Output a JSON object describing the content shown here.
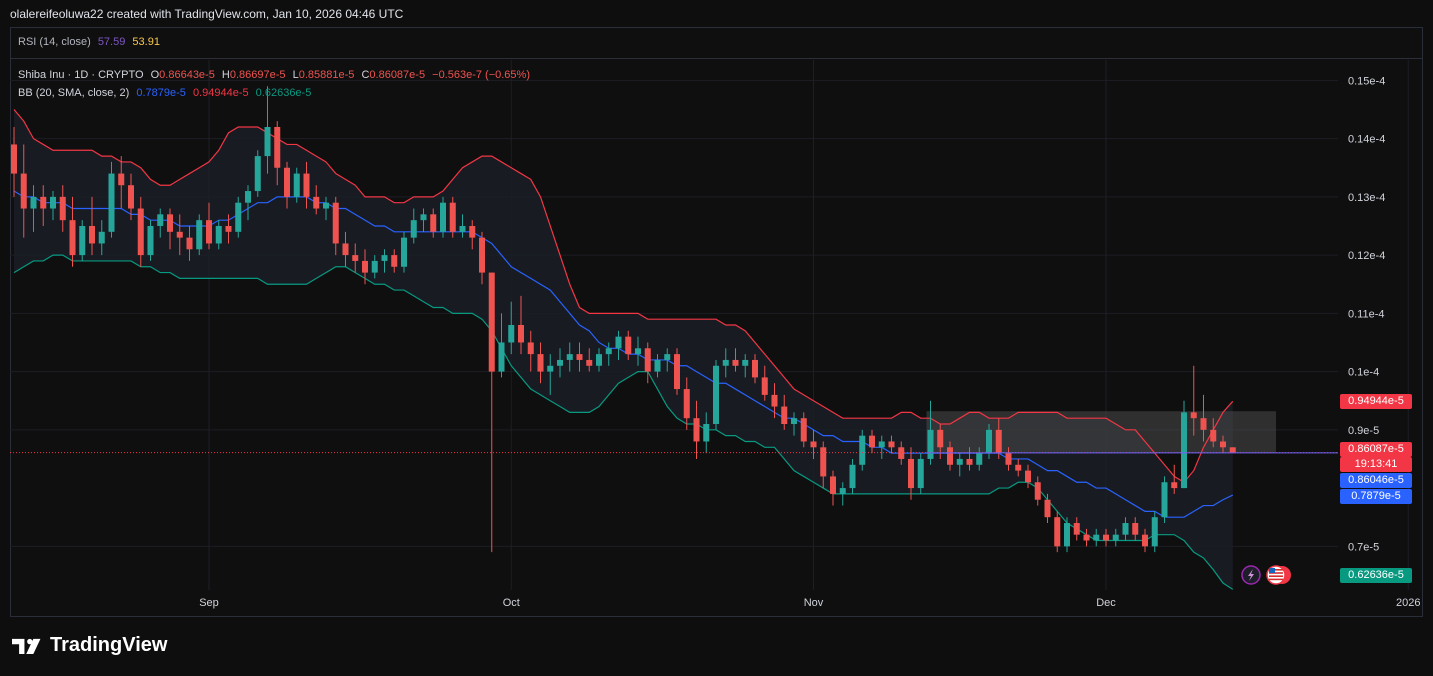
{
  "caption": "olalereifeoluwa22 created with TradingView.com, Jan 10, 2026 04:46 UTC",
  "rsi": {
    "label": "RSI (14, close)",
    "value1": "57.59",
    "value2": "53.91",
    "color1": "#7e57c2",
    "color2": "#f9c74f"
  },
  "legend": {
    "symbol": "Shiba Inu · 1D · CRYPTO",
    "o_label": "O",
    "o_value": "0.86643e-5",
    "h_label": "H",
    "h_value": "0.86697e-5",
    "l_label": "L",
    "l_value": "0.85881e-5",
    "c_label": "C",
    "c_value": "0.86087e-5",
    "change": "−0.563e-7 (−0.65%)",
    "bb_label": "BB (20, SMA, close, 2)",
    "bb_basis": "0.7879e-5",
    "bb_upper": "0.94944e-5",
    "bb_lower": "0.62636e-5"
  },
  "tags": {
    "upper": "0.94944e-5",
    "last": "0.86087e-5",
    "countdown": "19:13:41",
    "line": "0.86046e-5",
    "basis": "0.7879e-5",
    "lower": "0.62636e-5"
  },
  "brand": "TradingView",
  "colors": {
    "up": "#26a69a",
    "down": "#ef5350",
    "basis": "#2962ff",
    "upper": "#f23645",
    "lower": "#089981",
    "band_fill": "#1a1f26",
    "zone": "#4a4a4a"
  },
  "icons": [
    "flash-icon",
    "us-flag-icon"
  ],
  "chart_data": {
    "type": "candlestick",
    "title": "Shiba Inu · 1D · CRYPTO",
    "ylim": [
      0.0625,
      0.1535
    ],
    "y_ticks": [
      "0.7e-5",
      "0.9e-5",
      "0.1e-4",
      "0.11e-4",
      "0.12e-4",
      "0.13e-4",
      "0.14e-4",
      "0.15e-4"
    ],
    "y_tick_values": [
      0.07,
      0.09,
      0.1,
      0.11,
      0.12,
      0.13,
      0.14,
      0.15
    ],
    "x_ticks": [
      "Sep",
      "Oct",
      "Nov",
      "Dec",
      "2026"
    ],
    "x_tick_index": [
      20,
      51,
      82,
      112,
      143
    ],
    "unit": "1e-4",
    "candles": [
      [
        0.139,
        0.142,
        0.13,
        0.134
      ],
      [
        0.134,
        0.139,
        0.123,
        0.128
      ],
      [
        0.128,
        0.132,
        0.124,
        0.13
      ],
      [
        0.13,
        0.132,
        0.125,
        0.128
      ],
      [
        0.128,
        0.131,
        0.126,
        0.13
      ],
      [
        0.13,
        0.132,
        0.124,
        0.126
      ],
      [
        0.126,
        0.13,
        0.118,
        0.12
      ],
      [
        0.12,
        0.126,
        0.119,
        0.125
      ],
      [
        0.125,
        0.13,
        0.12,
        0.122
      ],
      [
        0.122,
        0.126,
        0.12,
        0.124
      ],
      [
        0.124,
        0.136,
        0.123,
        0.134
      ],
      [
        0.134,
        0.137,
        0.128,
        0.132
      ],
      [
        0.132,
        0.134,
        0.126,
        0.128
      ],
      [
        0.128,
        0.13,
        0.118,
        0.12
      ],
      [
        0.12,
        0.126,
        0.119,
        0.125
      ],
      [
        0.125,
        0.128,
        0.123,
        0.127
      ],
      [
        0.127,
        0.128,
        0.121,
        0.124
      ],
      [
        0.124,
        0.127,
        0.12,
        0.123
      ],
      [
        0.123,
        0.125,
        0.119,
        0.121
      ],
      [
        0.121,
        0.127,
        0.12,
        0.126
      ],
      [
        0.126,
        0.129,
        0.121,
        0.122
      ],
      [
        0.122,
        0.126,
        0.121,
        0.125
      ],
      [
        0.125,
        0.127,
        0.122,
        0.124
      ],
      [
        0.124,
        0.13,
        0.123,
        0.129
      ],
      [
        0.129,
        0.132,
        0.126,
        0.131
      ],
      [
        0.131,
        0.138,
        0.13,
        0.137
      ],
      [
        0.137,
        0.149,
        0.134,
        0.142
      ],
      [
        0.142,
        0.143,
        0.132,
        0.135
      ],
      [
        0.135,
        0.136,
        0.128,
        0.13
      ],
      [
        0.13,
        0.135,
        0.129,
        0.134
      ],
      [
        0.134,
        0.136,
        0.128,
        0.13
      ],
      [
        0.13,
        0.132,
        0.127,
        0.128
      ],
      [
        0.128,
        0.13,
        0.126,
        0.129
      ],
      [
        0.129,
        0.13,
        0.12,
        0.122
      ],
      [
        0.122,
        0.124,
        0.118,
        0.12
      ],
      [
        0.12,
        0.122,
        0.117,
        0.119
      ],
      [
        0.119,
        0.121,
        0.115,
        0.117
      ],
      [
        0.117,
        0.12,
        0.116,
        0.119
      ],
      [
        0.119,
        0.121,
        0.117,
        0.12
      ],
      [
        0.12,
        0.121,
        0.117,
        0.118
      ],
      [
        0.118,
        0.124,
        0.117,
        0.123
      ],
      [
        0.123,
        0.128,
        0.122,
        0.126
      ],
      [
        0.126,
        0.128,
        0.124,
        0.127
      ],
      [
        0.127,
        0.128,
        0.123,
        0.124
      ],
      [
        0.124,
        0.13,
        0.123,
        0.129
      ],
      [
        0.129,
        0.13,
        0.123,
        0.124
      ],
      [
        0.124,
        0.127,
        0.123,
        0.125
      ],
      [
        0.125,
        0.126,
        0.121,
        0.123
      ],
      [
        0.123,
        0.124,
        0.115,
        0.117
      ],
      [
        0.117,
        0.117,
        0.069,
        0.1
      ],
      [
        0.1,
        0.11,
        0.099,
        0.105
      ],
      [
        0.105,
        0.112,
        0.103,
        0.108
      ],
      [
        0.108,
        0.113,
        0.103,
        0.105
      ],
      [
        0.105,
        0.107,
        0.1,
        0.103
      ],
      [
        0.103,
        0.105,
        0.098,
        0.1
      ],
      [
        0.1,
        0.103,
        0.096,
        0.101
      ],
      [
        0.101,
        0.104,
        0.099,
        0.102
      ],
      [
        0.102,
        0.105,
        0.1,
        0.103
      ],
      [
        0.103,
        0.105,
        0.1,
        0.102
      ],
      [
        0.102,
        0.104,
        0.1,
        0.101
      ],
      [
        0.101,
        0.104,
        0.1,
        0.103
      ],
      [
        0.103,
        0.105,
        0.101,
        0.104
      ],
      [
        0.104,
        0.107,
        0.102,
        0.106
      ],
      [
        0.106,
        0.107,
        0.102,
        0.103
      ],
      [
        0.103,
        0.106,
        0.101,
        0.104
      ],
      [
        0.104,
        0.105,
        0.098,
        0.1
      ],
      [
        0.1,
        0.103,
        0.099,
        0.102
      ],
      [
        0.102,
        0.104,
        0.1,
        0.103
      ],
      [
        0.103,
        0.104,
        0.096,
        0.097
      ],
      [
        0.097,
        0.099,
        0.09,
        0.092
      ],
      [
        0.092,
        0.095,
        0.085,
        0.088
      ],
      [
        0.088,
        0.093,
        0.086,
        0.091
      ],
      [
        0.091,
        0.102,
        0.09,
        0.101
      ],
      [
        0.101,
        0.104,
        0.099,
        0.102
      ],
      [
        0.102,
        0.104,
        0.1,
        0.101
      ],
      [
        0.101,
        0.103,
        0.099,
        0.102
      ],
      [
        0.102,
        0.103,
        0.098,
        0.099
      ],
      [
        0.099,
        0.101,
        0.095,
        0.096
      ],
      [
        0.096,
        0.098,
        0.092,
        0.094
      ],
      [
        0.094,
        0.096,
        0.09,
        0.091
      ],
      [
        0.091,
        0.093,
        0.089,
        0.092
      ],
      [
        0.092,
        0.093,
        0.087,
        0.088
      ],
      [
        0.088,
        0.09,
        0.085,
        0.087
      ],
      [
        0.087,
        0.088,
        0.08,
        0.082
      ],
      [
        0.082,
        0.083,
        0.077,
        0.079
      ],
      [
        0.079,
        0.081,
        0.077,
        0.08
      ],
      [
        0.08,
        0.085,
        0.079,
        0.084
      ],
      [
        0.084,
        0.09,
        0.083,
        0.089
      ],
      [
        0.089,
        0.09,
        0.086,
        0.087
      ],
      [
        0.087,
        0.089,
        0.085,
        0.088
      ],
      [
        0.088,
        0.089,
        0.086,
        0.087
      ],
      [
        0.087,
        0.088,
        0.084,
        0.085
      ],
      [
        0.085,
        0.087,
        0.078,
        0.08
      ],
      [
        0.08,
        0.086,
        0.079,
        0.085
      ],
      [
        0.085,
        0.095,
        0.084,
        0.09
      ],
      [
        0.09,
        0.091,
        0.085,
        0.087
      ],
      [
        0.087,
        0.088,
        0.083,
        0.084
      ],
      [
        0.084,
        0.086,
        0.082,
        0.085
      ],
      [
        0.085,
        0.087,
        0.083,
        0.084
      ],
      [
        0.084,
        0.087,
        0.083,
        0.086
      ],
      [
        0.086,
        0.091,
        0.085,
        0.09
      ],
      [
        0.09,
        0.092,
        0.085,
        0.086
      ],
      [
        0.086,
        0.087,
        0.083,
        0.084
      ],
      [
        0.084,
        0.085,
        0.082,
        0.083
      ],
      [
        0.083,
        0.084,
        0.08,
        0.081
      ],
      [
        0.081,
        0.082,
        0.077,
        0.078
      ],
      [
        0.078,
        0.079,
        0.074,
        0.075
      ],
      [
        0.075,
        0.076,
        0.069,
        0.07
      ],
      [
        0.07,
        0.075,
        0.069,
        0.074
      ],
      [
        0.074,
        0.075,
        0.071,
        0.072
      ],
      [
        0.072,
        0.073,
        0.07,
        0.071
      ],
      [
        0.071,
        0.073,
        0.07,
        0.072
      ],
      [
        0.072,
        0.073,
        0.07,
        0.071
      ],
      [
        0.071,
        0.073,
        0.07,
        0.072
      ],
      [
        0.072,
        0.075,
        0.071,
        0.074
      ],
      [
        0.074,
        0.075,
        0.071,
        0.072
      ],
      [
        0.072,
        0.073,
        0.069,
        0.07
      ],
      [
        0.07,
        0.076,
        0.069,
        0.075
      ],
      [
        0.075,
        0.082,
        0.074,
        0.081
      ],
      [
        0.081,
        0.084,
        0.079,
        0.08
      ],
      [
        0.08,
        0.095,
        0.08,
        0.093
      ],
      [
        0.093,
        0.101,
        0.089,
        0.092
      ],
      [
        0.092,
        0.096,
        0.088,
        0.09
      ],
      [
        0.09,
        0.092,
        0.087,
        0.088
      ],
      [
        0.088,
        0.089,
        0.086,
        0.087
      ],
      [
        0.087,
        0.087,
        0.086,
        0.0861
      ]
    ],
    "bb_upper": [
      0.145,
      0.143,
      0.14,
      0.139,
      0.138,
      0.138,
      0.138,
      0.138,
      0.138,
      0.137,
      0.137,
      0.136,
      0.136,
      0.135,
      0.133,
      0.132,
      0.132,
      0.133,
      0.134,
      0.135,
      0.136,
      0.138,
      0.141,
      0.142,
      0.142,
      0.142,
      0.141,
      0.14,
      0.139,
      0.139,
      0.138,
      0.137,
      0.136,
      0.134,
      0.133,
      0.132,
      0.13,
      0.13,
      0.13,
      0.129,
      0.129,
      0.13,
      0.13,
      0.13,
      0.131,
      0.133,
      0.135,
      0.136,
      0.137,
      0.137,
      0.136,
      0.135,
      0.134,
      0.133,
      0.13,
      0.125,
      0.12,
      0.115,
      0.111,
      0.11,
      0.11,
      0.11,
      0.11,
      0.11,
      0.11,
      0.109,
      0.109,
      0.109,
      0.109,
      0.109,
      0.109,
      0.109,
      0.109,
      0.108,
      0.108,
      0.107,
      0.105,
      0.103,
      0.101,
      0.099,
      0.097,
      0.096,
      0.095,
      0.094,
      0.093,
      0.092,
      0.092,
      0.092,
      0.092,
      0.092,
      0.092,
      0.093,
      0.093,
      0.092,
      0.092,
      0.091,
      0.091,
      0.092,
      0.093,
      0.093,
      0.092,
      0.092,
      0.092,
      0.093,
      0.093,
      0.093,
      0.093,
      0.093,
      0.092,
      0.092,
      0.092,
      0.092,
      0.092,
      0.091,
      0.09,
      0.09,
      0.088,
      0.086,
      0.084,
      0.082,
      0.081,
      0.083,
      0.087,
      0.09,
      0.093,
      0.0949
    ],
    "bb_basis": [
      0.131,
      0.13,
      0.13,
      0.129,
      0.129,
      0.129,
      0.128,
      0.128,
      0.128,
      0.128,
      0.128,
      0.128,
      0.127,
      0.127,
      0.126,
      0.126,
      0.126,
      0.125,
      0.125,
      0.125,
      0.125,
      0.126,
      0.126,
      0.127,
      0.128,
      0.129,
      0.129,
      0.13,
      0.13,
      0.13,
      0.13,
      0.129,
      0.129,
      0.128,
      0.128,
      0.127,
      0.126,
      0.125,
      0.125,
      0.124,
      0.124,
      0.124,
      0.124,
      0.124,
      0.124,
      0.124,
      0.124,
      0.124,
      0.123,
      0.122,
      0.12,
      0.118,
      0.117,
      0.116,
      0.115,
      0.114,
      0.112,
      0.11,
      0.108,
      0.107,
      0.105,
      0.104,
      0.104,
      0.103,
      0.103,
      0.102,
      0.102,
      0.102,
      0.101,
      0.101,
      0.1,
      0.099,
      0.098,
      0.098,
      0.097,
      0.096,
      0.095,
      0.094,
      0.093,
      0.092,
      0.092,
      0.091,
      0.09,
      0.089,
      0.089,
      0.088,
      0.088,
      0.088,
      0.087,
      0.087,
      0.086,
      0.086,
      0.086,
      0.086,
      0.086,
      0.086,
      0.086,
      0.086,
      0.086,
      0.086,
      0.086,
      0.086,
      0.085,
      0.085,
      0.085,
      0.084,
      0.083,
      0.083,
      0.082,
      0.081,
      0.081,
      0.08,
      0.08,
      0.079,
      0.078,
      0.077,
      0.076,
      0.076,
      0.075,
      0.075,
      0.075,
      0.076,
      0.077,
      0.077,
      0.078,
      0.0788
    ],
    "bb_lower": [
      0.117,
      0.118,
      0.119,
      0.119,
      0.12,
      0.12,
      0.119,
      0.119,
      0.119,
      0.119,
      0.119,
      0.119,
      0.119,
      0.118,
      0.118,
      0.117,
      0.117,
      0.116,
      0.116,
      0.116,
      0.116,
      0.116,
      0.116,
      0.116,
      0.116,
      0.116,
      0.115,
      0.115,
      0.115,
      0.115,
      0.115,
      0.116,
      0.117,
      0.118,
      0.118,
      0.117,
      0.116,
      0.115,
      0.115,
      0.114,
      0.114,
      0.113,
      0.112,
      0.111,
      0.111,
      0.11,
      0.11,
      0.11,
      0.109,
      0.107,
      0.104,
      0.101,
      0.099,
      0.097,
      0.096,
      0.095,
      0.094,
      0.093,
      0.093,
      0.093,
      0.094,
      0.096,
      0.098,
      0.099,
      0.1,
      0.1,
      0.097,
      0.094,
      0.092,
      0.091,
      0.091,
      0.09,
      0.09,
      0.089,
      0.089,
      0.088,
      0.088,
      0.087,
      0.087,
      0.085,
      0.083,
      0.082,
      0.081,
      0.08,
      0.079,
      0.079,
      0.079,
      0.079,
      0.079,
      0.079,
      0.079,
      0.079,
      0.079,
      0.079,
      0.079,
      0.079,
      0.079,
      0.079,
      0.079,
      0.079,
      0.079,
      0.08,
      0.08,
      0.081,
      0.081,
      0.08,
      0.078,
      0.076,
      0.074,
      0.073,
      0.072,
      0.071,
      0.071,
      0.071,
      0.071,
      0.071,
      0.071,
      0.072,
      0.072,
      0.072,
      0.071,
      0.069,
      0.068,
      0.066,
      0.0637,
      0.0626
    ],
    "current_price": 0.086087,
    "price_line": 0.086046,
    "zone": {
      "start_index": 94,
      "top": 0.0932,
      "bottom": 0.0861
    }
  }
}
